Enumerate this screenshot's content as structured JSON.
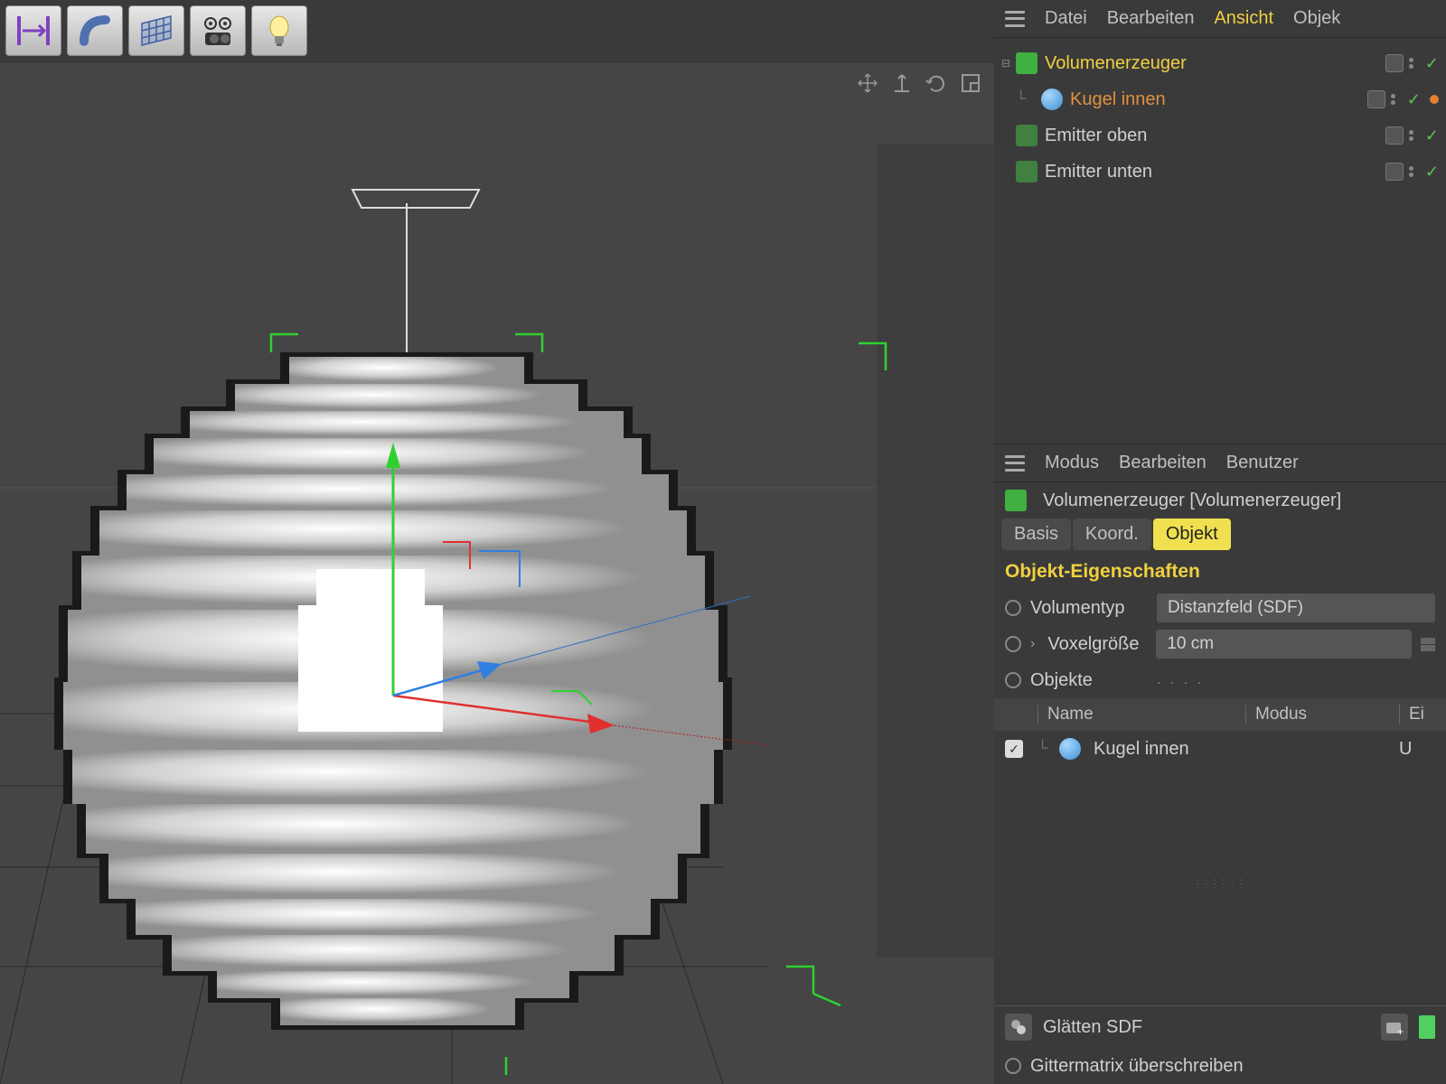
{
  "colors": {
    "bg": "#3a3a3a",
    "viewport": "#454545",
    "yellow": "#f0d040",
    "orange": "#e09040",
    "green": "#5dc050",
    "axis_x": "#e03030",
    "axis_y": "#30d030",
    "axis_z": "#3080e0"
  },
  "toolbar": {
    "tools": [
      "move-axis",
      "bend",
      "grid",
      "camera",
      "light"
    ]
  },
  "object_manager": {
    "menu": {
      "datei": "Datei",
      "bearbeiten": "Bearbeiten",
      "ansicht": "Ansicht",
      "objekte": "Objek"
    },
    "active_menu": "ansicht",
    "tree": [
      {
        "label": "Volumenerzeuger",
        "color": "yellow",
        "icon": "volume",
        "indent": 0,
        "expandable": true,
        "tag": false
      },
      {
        "label": "Kugel innen",
        "color": "orange",
        "icon": "sphere",
        "indent": 1,
        "expandable": false,
        "tag": true
      },
      {
        "label": "Emitter oben",
        "color": "normal",
        "icon": "emitter",
        "indent": 0,
        "expandable": false,
        "tag": false
      },
      {
        "label": "Emitter unten",
        "color": "normal",
        "icon": "emitter",
        "indent": 0,
        "expandable": false,
        "tag": false
      }
    ]
  },
  "attribute_manager": {
    "menu": {
      "modus": "Modus",
      "bearbeiten": "Bearbeiten",
      "benutzer": "Benutzer"
    },
    "title": "Volumenerzeuger [Volumenerzeuger]",
    "tabs": {
      "basis": "Basis",
      "koord": "Koord.",
      "objekt": "Objekt"
    },
    "active_tab": "objekt",
    "section_title": "Objekt-Eigenschaften",
    "props": {
      "volumentyp_label": "Volumentyp",
      "volumentyp_value": "Distanzfeld (SDF)",
      "voxel_label": "Voxelgröße",
      "voxel_value": "10 cm",
      "objekte_label": "Objekte"
    },
    "table": {
      "col_name": "Name",
      "col_modus": "Modus",
      "col_ei": "Ei",
      "row_label": "Kugel innen",
      "row_mode": "U"
    },
    "bottom": {
      "glaetten": "Glätten SDF",
      "gittermatrix": "Gittermatrix überschreiben"
    }
  }
}
